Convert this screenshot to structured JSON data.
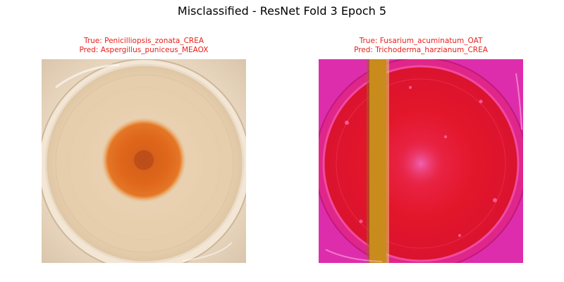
{
  "figure": {
    "title": "Misclassified - ResNet Fold 3 Epoch 5"
  },
  "panels": [
    {
      "true_label": "True: Penicilliopsis_zonata_CREA",
      "pred_label": "Pred: Aspergillus_puniceus_MEAOX",
      "colors": {
        "background": "#f2dcc0",
        "dish": "#e8d1b2",
        "colony": "#e06a1c",
        "colony_center": "#b84a1a"
      }
    },
    {
      "true_label": "True: Fusarium_acuminatum_OAT",
      "pred_label": "Pred: Trichoderma_harzianum_CREA",
      "colors": {
        "background": "#e21aa8",
        "dish": "#e3162a",
        "strip": "#c98b1c",
        "highlight": "#f04aa0"
      }
    }
  ],
  "caption_color": "#e8201a"
}
